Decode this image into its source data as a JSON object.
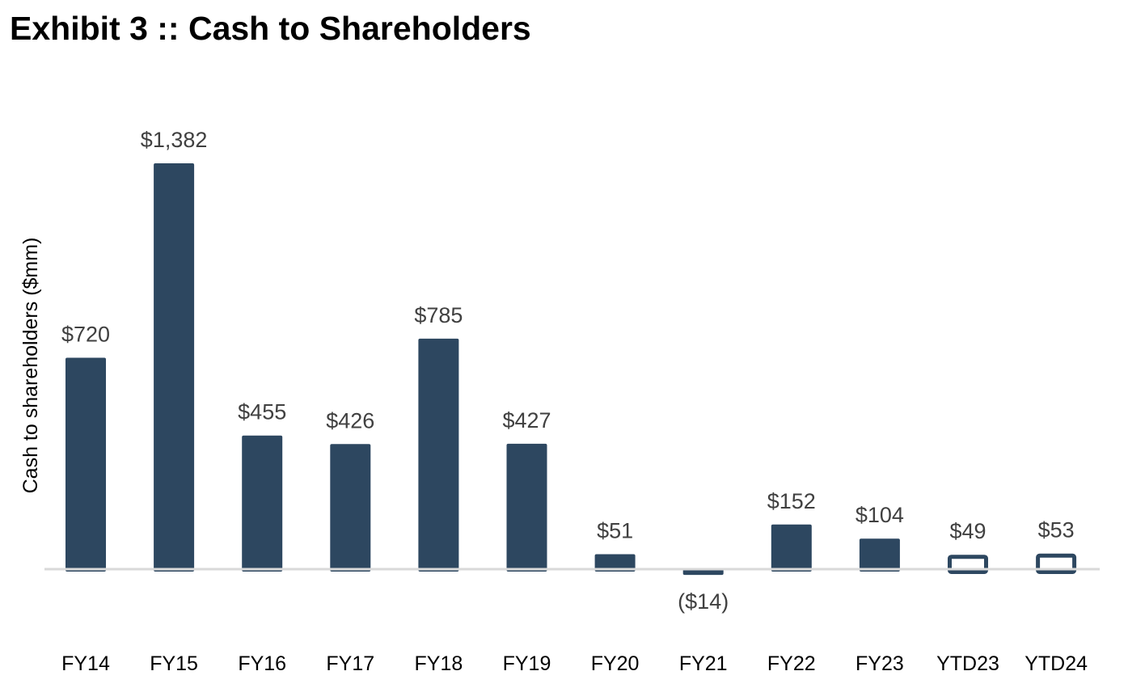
{
  "chart_data": {
    "type": "bar",
    "title": "Exhibit 3 :: Cash to Shareholders",
    "xlabel": "",
    "ylabel": "Cash to shareholders ($mm)",
    "categories": [
      "FY14",
      "FY15",
      "FY16",
      "FY17",
      "FY18",
      "FY19",
      "FY20",
      "FY21",
      "FY22",
      "FY23",
      "YTD23",
      "YTD24"
    ],
    "values": [
      720,
      1382,
      455,
      426,
      785,
      427,
      51,
      -14,
      152,
      104,
      49,
      53
    ],
    "data_labels": [
      "$720",
      "$1,382",
      "$455",
      "$426",
      "$785",
      "$427",
      "$51",
      "($14)",
      "$152",
      "$104",
      "$49",
      "$53"
    ],
    "bar_style": [
      "filled",
      "filled",
      "filled",
      "filled",
      "filled",
      "filled",
      "filled",
      "filled",
      "filled",
      "filled",
      "outline",
      "outline"
    ],
    "ylim": [
      -100,
      1500
    ],
    "grid": false,
    "legend": "none",
    "colors": {
      "bar": "#2d4760",
      "label": "#404040",
      "baseline": "#d9d9d9"
    }
  }
}
